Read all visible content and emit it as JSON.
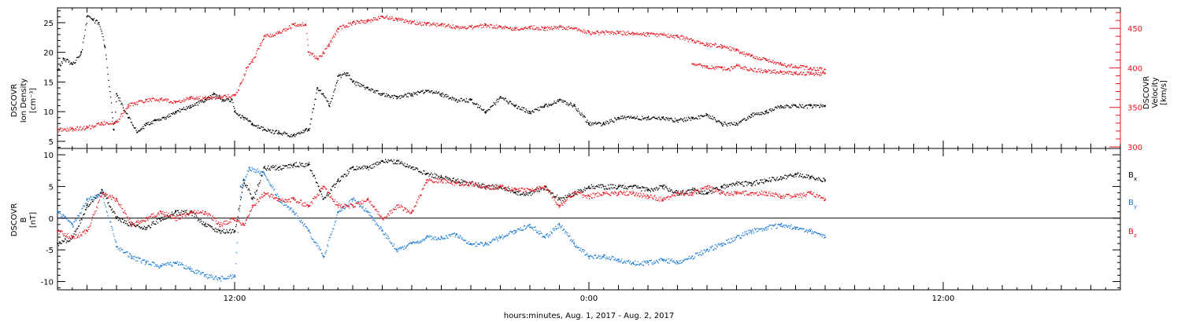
{
  "colors": {
    "black": "#000000",
    "red": "#e8141e",
    "blue": "#1a7ad4"
  },
  "xlabel": "hours:minutes, Aug.  1, 2017 - Aug.  2, 2017",
  "x_tick_labels": [
    {
      "hour": 12,
      "label": "12:00"
    },
    {
      "hour": 24,
      "label": "0:00"
    },
    {
      "hour": 36,
      "label": "12:00"
    }
  ],
  "x_range_hours": [
    6,
    42
  ],
  "chart_data": [
    {
      "type": "scatter",
      "panel": "top",
      "ylabel_left": [
        "DSCOVR",
        "Ion Density",
        "[cm⁻³]"
      ],
      "ylabel_right": [
        "DSCOVR",
        "Velocity",
        "[km/s]"
      ],
      "yleft_ticks": [
        5,
        10,
        15,
        20,
        25
      ],
      "yleft_range": [
        3.8,
        27.5
      ],
      "yright_ticks": [
        300,
        350,
        400,
        450
      ],
      "yright_range": [
        298,
        476
      ],
      "series": [
        {
          "color": "black",
          "axis": "left",
          "x": [
            6.0,
            6.2,
            6.5,
            6.8,
            7.0,
            7.2,
            7.4,
            7.6,
            7.9,
            8.0,
            8.4,
            8.7,
            9.0,
            9.3,
            9.6,
            10.0,
            10.5,
            11.0,
            11.3,
            11.6,
            11.9,
            12.0,
            12.3,
            12.6,
            13.0,
            13.5,
            14.0,
            14.4,
            14.5,
            14.8,
            15.0,
            15.2,
            15.5,
            15.8,
            16.0,
            16.5,
            17.0,
            17.5,
            18.0,
            18.5,
            19.0,
            19.5,
            20.0,
            20.5,
            21.0,
            21.5,
            22.0,
            22.5,
            23.0,
            23.5,
            24.0,
            24.5,
            25.0,
            25.5,
            26.0,
            26.5,
            27.0,
            27.5,
            28.0,
            28.5,
            29.0,
            29.5,
            30.0,
            30.5,
            31.0,
            31.5,
            32.0
          ],
          "y": [
            17,
            19,
            18,
            20,
            26,
            25.5,
            25,
            21,
            7,
            13,
            9,
            6.5,
            8,
            8.5,
            9,
            10,
            11,
            12,
            13,
            12,
            12,
            10,
            9,
            8,
            7,
            6.5,
            6,
            7,
            7,
            14,
            13,
            11,
            16,
            16.5,
            15,
            14,
            13,
            12.5,
            13,
            13.5,
            13,
            12,
            12,
            10,
            12.5,
            11,
            10,
            11,
            12,
            11,
            8,
            8,
            9,
            9,
            9,
            9,
            8.5,
            9,
            9.5,
            8,
            8,
            9.5,
            10,
            11,
            11,
            11,
            11
          ]
        },
        {
          "color": "red",
          "axis": "right",
          "x": [
            6.0,
            6.5,
            7.0,
            7.5,
            8.0,
            8.4,
            8.6,
            9.0,
            9.5,
            10.0,
            10.5,
            11.0,
            11.5,
            12.0,
            12.2,
            12.4,
            12.6,
            13.0,
            13.5,
            14.0,
            14.4,
            14.5,
            14.8,
            15.0,
            15.2,
            15.5,
            16.0,
            16.5,
            17.0,
            17.5,
            18.0,
            18.5,
            19.0,
            19.5,
            20.0,
            20.5,
            21.0,
            21.5,
            22.0,
            22.5,
            23.0,
            23.5,
            24.0,
            24.5,
            25.0,
            25.5,
            26.0,
            26.5,
            27.0,
            27.5,
            28.0,
            28.5,
            29.0,
            29.5,
            30.0,
            30.5,
            31.0,
            31.5,
            32.0
          ],
          "y": [
            322,
            323,
            325,
            330,
            332,
            353,
            355,
            360,
            360,
            357,
            362,
            362,
            364,
            365,
            380,
            400,
            410,
            440,
            445,
            455,
            455,
            420,
            412,
            420,
            430,
            450,
            457,
            460,
            465,
            462,
            458,
            456,
            455,
            452,
            452,
            454,
            452,
            450,
            452,
            450,
            452,
            450,
            445,
            445,
            445,
            444,
            443,
            442,
            440,
            435,
            430,
            428,
            422,
            415,
            410,
            405,
            402,
            400,
            398
          ]
        },
        {
          "color": "red",
          "axis": "right",
          "x": [
            27.5,
            28.0,
            28.5,
            28.7,
            29.0,
            29.5,
            30.0,
            30.5,
            31.0,
            31.5,
            32.0
          ],
          "y": [
            405,
            402,
            400,
            398,
            403,
            398,
            396,
            395,
            394,
            393,
            393
          ]
        }
      ]
    },
    {
      "type": "scatter",
      "panel": "bottom",
      "ylabel_left": [
        "DSCOVR",
        "B",
        "[nT]"
      ],
      "yticks": [
        -10,
        -5,
        0,
        5,
        10
      ],
      "yrange": [
        -11.3,
        11
      ],
      "series": [
        {
          "name": "Bx",
          "color": "black",
          "x": [
            6.0,
            6.5,
            7.0,
            7.5,
            8.0,
            8.5,
            9.0,
            9.5,
            10.0,
            10.5,
            11.0,
            11.5,
            12.0,
            12.3,
            12.6,
            13.0,
            13.5,
            14.0,
            14.5,
            15.0,
            15.5,
            16.0,
            16.5,
            17.0,
            17.5,
            18.0,
            18.5,
            19.0,
            19.5,
            20.0,
            20.5,
            21.0,
            21.5,
            22.0,
            22.5,
            23.0,
            23.5,
            24.0,
            24.5,
            25.0,
            25.5,
            26.0,
            26.5,
            27.0,
            27.5,
            28.0,
            28.5,
            29.0,
            29.5,
            30.0,
            30.5,
            31.0,
            31.5,
            32.0
          ],
          "y": [
            -4,
            -3,
            2,
            4.5,
            0,
            -1,
            -1.5,
            0,
            1,
            1,
            -1,
            -2,
            -2,
            6,
            3,
            8,
            8,
            8.5,
            8.5,
            3,
            6,
            8,
            8,
            9,
            9,
            8,
            7,
            6.5,
            6,
            5.5,
            5,
            5,
            4,
            4,
            5,
            3,
            4,
            5,
            5,
            5,
            5,
            4.5,
            5,
            4,
            4.5,
            4,
            5,
            5.5,
            5.5,
            6,
            6.5,
            7,
            6.5,
            6
          ]
        },
        {
          "name": "By",
          "color": "blue",
          "x": [
            6.0,
            6.5,
            7.0,
            7.5,
            8.0,
            8.5,
            9.0,
            9.5,
            10.0,
            10.5,
            11.0,
            11.5,
            12.0,
            12.2,
            12.5,
            13.0,
            13.5,
            14.0,
            14.5,
            15.0,
            15.5,
            16.0,
            16.5,
            17.0,
            17.5,
            18.0,
            18.5,
            19.0,
            19.5,
            20.0,
            20.5,
            21.0,
            21.5,
            22.0,
            22.5,
            23.0,
            23.5,
            24.0,
            24.5,
            25.0,
            25.5,
            26.0,
            26.5,
            27.0,
            27.5,
            28.0,
            28.5,
            29.0,
            29.5,
            30.0,
            30.5,
            31.0,
            31.5,
            32.0
          ],
          "y": [
            1,
            -1,
            3,
            4,
            -4.5,
            -6,
            -7,
            -7.5,
            -7,
            -8,
            -9,
            -9.5,
            -9,
            5,
            8,
            7,
            3,
            1,
            -2,
            -6,
            1,
            3,
            1,
            -2,
            -5,
            -4,
            -3,
            -3,
            -2.5,
            -4,
            -4,
            -3,
            -2,
            -1,
            -3,
            -1,
            -4,
            -6,
            -6,
            -6.5,
            -7,
            -7,
            -6.5,
            -7,
            -6,
            -5,
            -4,
            -3,
            -2,
            -1.5,
            -1,
            -1.5,
            -2,
            -3
          ]
        },
        {
          "name": "Bz",
          "color": "red",
          "x": [
            6.0,
            6.5,
            7.0,
            7.5,
            8.0,
            8.5,
            9.0,
            9.5,
            10.0,
            10.5,
            11.0,
            11.5,
            12.0,
            12.3,
            12.6,
            13.0,
            13.5,
            14.0,
            14.5,
            15.0,
            15.5,
            16.0,
            16.5,
            17.0,
            17.5,
            18.0,
            18.5,
            19.0,
            19.5,
            20.0,
            20.5,
            21.0,
            21.5,
            22.0,
            22.5,
            23.0,
            23.5,
            24.0,
            24.5,
            25.0,
            25.5,
            26.0,
            26.5,
            27.0,
            27.5,
            28.0,
            28.5,
            29.0,
            29.5,
            30.0,
            30.5,
            31.0,
            31.5,
            32.0
          ],
          "y": [
            -2,
            -3,
            -2,
            4,
            3,
            -1,
            0,
            1,
            0,
            1,
            1,
            -1,
            0,
            -1,
            2,
            4,
            3,
            3,
            2,
            5,
            2,
            2,
            3,
            0,
            2,
            1,
            6,
            6,
            5.5,
            5.5,
            5,
            5,
            4.5,
            4.5,
            5,
            2,
            4,
            3.5,
            4,
            4,
            4,
            3.5,
            3,
            4,
            4,
            5,
            4,
            4,
            4,
            4,
            3.5,
            3.5,
            4,
            3
          ]
        }
      ],
      "legend": [
        "B",
        "x",
        "B",
        "y",
        "B",
        "z"
      ]
    }
  ]
}
